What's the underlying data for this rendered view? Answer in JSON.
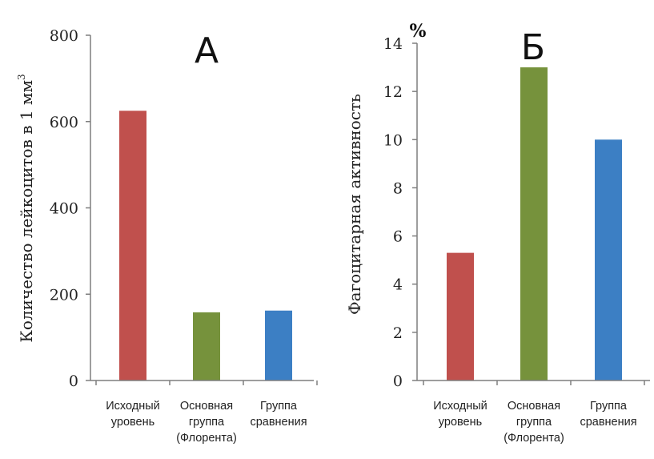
{
  "chart_data": [
    {
      "type": "bar",
      "panel_label": "А",
      "categories": [
        [
          "Исходный",
          "уровень"
        ],
        [
          "Основная",
          "группа",
          "(Флорента)"
        ],
        [
          "Группа",
          "сравнения"
        ]
      ],
      "values": [
        625,
        158,
        162
      ],
      "colors": [
        "#c0504d",
        "#76923c",
        "#3c7fc4"
      ],
      "ylabel": "Количество лейкоцитов в 1 мм",
      "ylabel_sup": "3",
      "ylim": [
        0,
        800
      ],
      "yticks": [
        0,
        200,
        400,
        600,
        800
      ],
      "grid": false
    },
    {
      "type": "bar",
      "panel_label": "Б",
      "unit_label": "%",
      "categories": [
        [
          "Исходный",
          "уровень"
        ],
        [
          "Основная",
          "группа",
          "(Флорента)"
        ],
        [
          "Группа",
          "сравнения"
        ]
      ],
      "values": [
        5.3,
        13,
        10
      ],
      "colors": [
        "#c0504d",
        "#76923c",
        "#3c7fc4"
      ],
      "ylabel": "Фагоцитарная активность",
      "ylim": [
        0,
        14
      ],
      "yticks": [
        0,
        2,
        4,
        6,
        8,
        10,
        12,
        14
      ],
      "grid": false
    }
  ]
}
